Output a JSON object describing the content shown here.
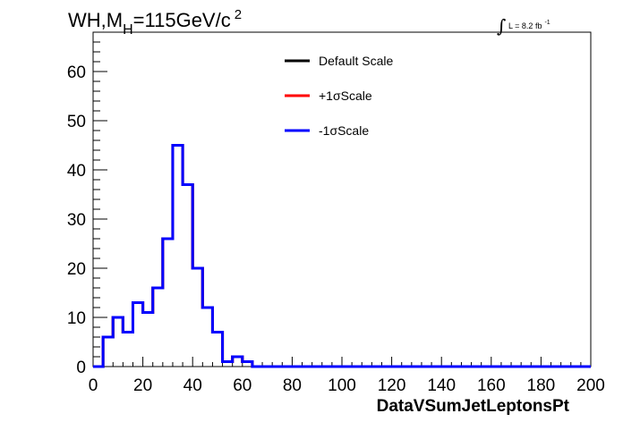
{
  "chart_data": {
    "type": "line",
    "title_main": "WH,M",
    "title_sub": "H",
    "title_rest": "=115GeV/c",
    "title_sup": "2",
    "lumi_text": "L = 8.2 fb",
    "lumi_sup": "-1",
    "xlabel": "DataVSumJetLeptonsPt",
    "xlim": [
      0,
      200
    ],
    "ylim": [
      0,
      68
    ],
    "x_ticks": [
      "0",
      "20",
      "40",
      "60",
      "80",
      "100",
      "120",
      "140",
      "160",
      "180",
      "200"
    ],
    "y_ticks": [
      "0",
      "10",
      "20",
      "30",
      "40",
      "50",
      "60"
    ],
    "bin_edges": [
      0,
      4,
      8,
      12,
      16,
      20,
      24,
      28,
      32,
      36,
      40,
      44,
      48,
      52,
      56,
      60,
      64,
      68,
      72,
      76,
      80,
      84,
      88,
      92,
      96,
      100,
      104,
      108,
      112,
      116,
      120,
      124,
      128,
      132,
      136,
      140,
      144,
      148,
      152,
      156,
      160,
      164,
      168,
      172,
      176,
      180,
      184,
      188,
      192,
      196,
      200
    ],
    "legend_position": "top-center",
    "series": [
      {
        "name": "Default Scale",
        "color": "#000000",
        "values": [
          0,
          6,
          10,
          7,
          13,
          11,
          16,
          26,
          45,
          37,
          20,
          12,
          7,
          1,
          2,
          1,
          0,
          0,
          0,
          0,
          0,
          0,
          0,
          0,
          0,
          0,
          0,
          0,
          0,
          0,
          0,
          0,
          0,
          0,
          0,
          0,
          0,
          0,
          0,
          0,
          0,
          0,
          0,
          0,
          0,
          0,
          0,
          0,
          0,
          0
        ]
      },
      {
        "name": "+1σScale",
        "color": "#ff0000",
        "values": [
          0,
          6,
          10,
          7,
          13,
          11,
          16,
          26,
          45,
          37,
          20,
          12,
          7,
          1,
          2,
          1,
          0,
          0,
          0,
          0,
          0,
          0,
          0,
          0,
          0,
          0,
          0,
          0,
          0,
          0,
          0,
          0,
          0,
          0,
          0,
          0,
          0,
          0,
          0,
          0,
          0,
          0,
          0,
          0,
          0,
          0,
          0,
          0,
          0,
          0
        ]
      },
      {
        "name": "-1σScale",
        "color": "#0000ff",
        "values": [
          0,
          6,
          10,
          7,
          13,
          11,
          16,
          26,
          45,
          37,
          20,
          12,
          7,
          1,
          2,
          1,
          0,
          0,
          0,
          0,
          0,
          0,
          0,
          0,
          0,
          0,
          0,
          0,
          0,
          0,
          0,
          0,
          0,
          0,
          0,
          0,
          0,
          0,
          0,
          0,
          0,
          0,
          0,
          0,
          0,
          0,
          0,
          0,
          0,
          0
        ]
      }
    ]
  }
}
